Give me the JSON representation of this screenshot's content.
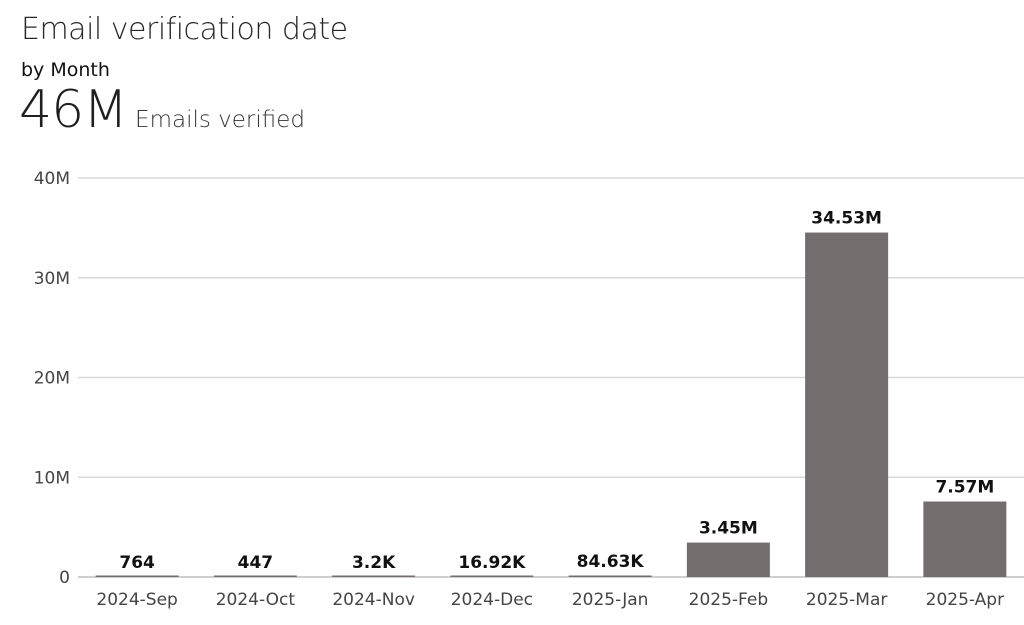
{
  "header": {
    "title": "Email verification date",
    "subtitle": "by Month",
    "kpi_value": "46M",
    "kpi_label": "Emails verified"
  },
  "colors": {
    "bar": "#736d6e",
    "grid": "#d9d9d9",
    "axis": "#bfbfbf"
  },
  "chart_data": {
    "type": "bar",
    "title": "Email verification date",
    "subtitle": "by Month",
    "xlabel": "",
    "ylabel": "",
    "categories": [
      "2024-Sep",
      "2024-Oct",
      "2024-Nov",
      "2024-Dec",
      "2025-Jan",
      "2025-Feb",
      "2025-Mar",
      "2025-Apr"
    ],
    "values": [
      764,
      447,
      3200,
      16920,
      84630,
      3450000,
      34530000,
      7570000
    ],
    "data_labels": [
      "764",
      "447",
      "3.2K",
      "16.92K",
      "84.63K",
      "3.45M",
      "34.53M",
      "7.57M"
    ],
    "ylim": [
      0,
      40000000
    ],
    "yticks": [
      0,
      10000000,
      20000000,
      30000000,
      40000000
    ],
    "ytick_labels": [
      "0",
      "10M",
      "20M",
      "30M",
      "40M"
    ],
    "grid": true,
    "legend": "none"
  }
}
